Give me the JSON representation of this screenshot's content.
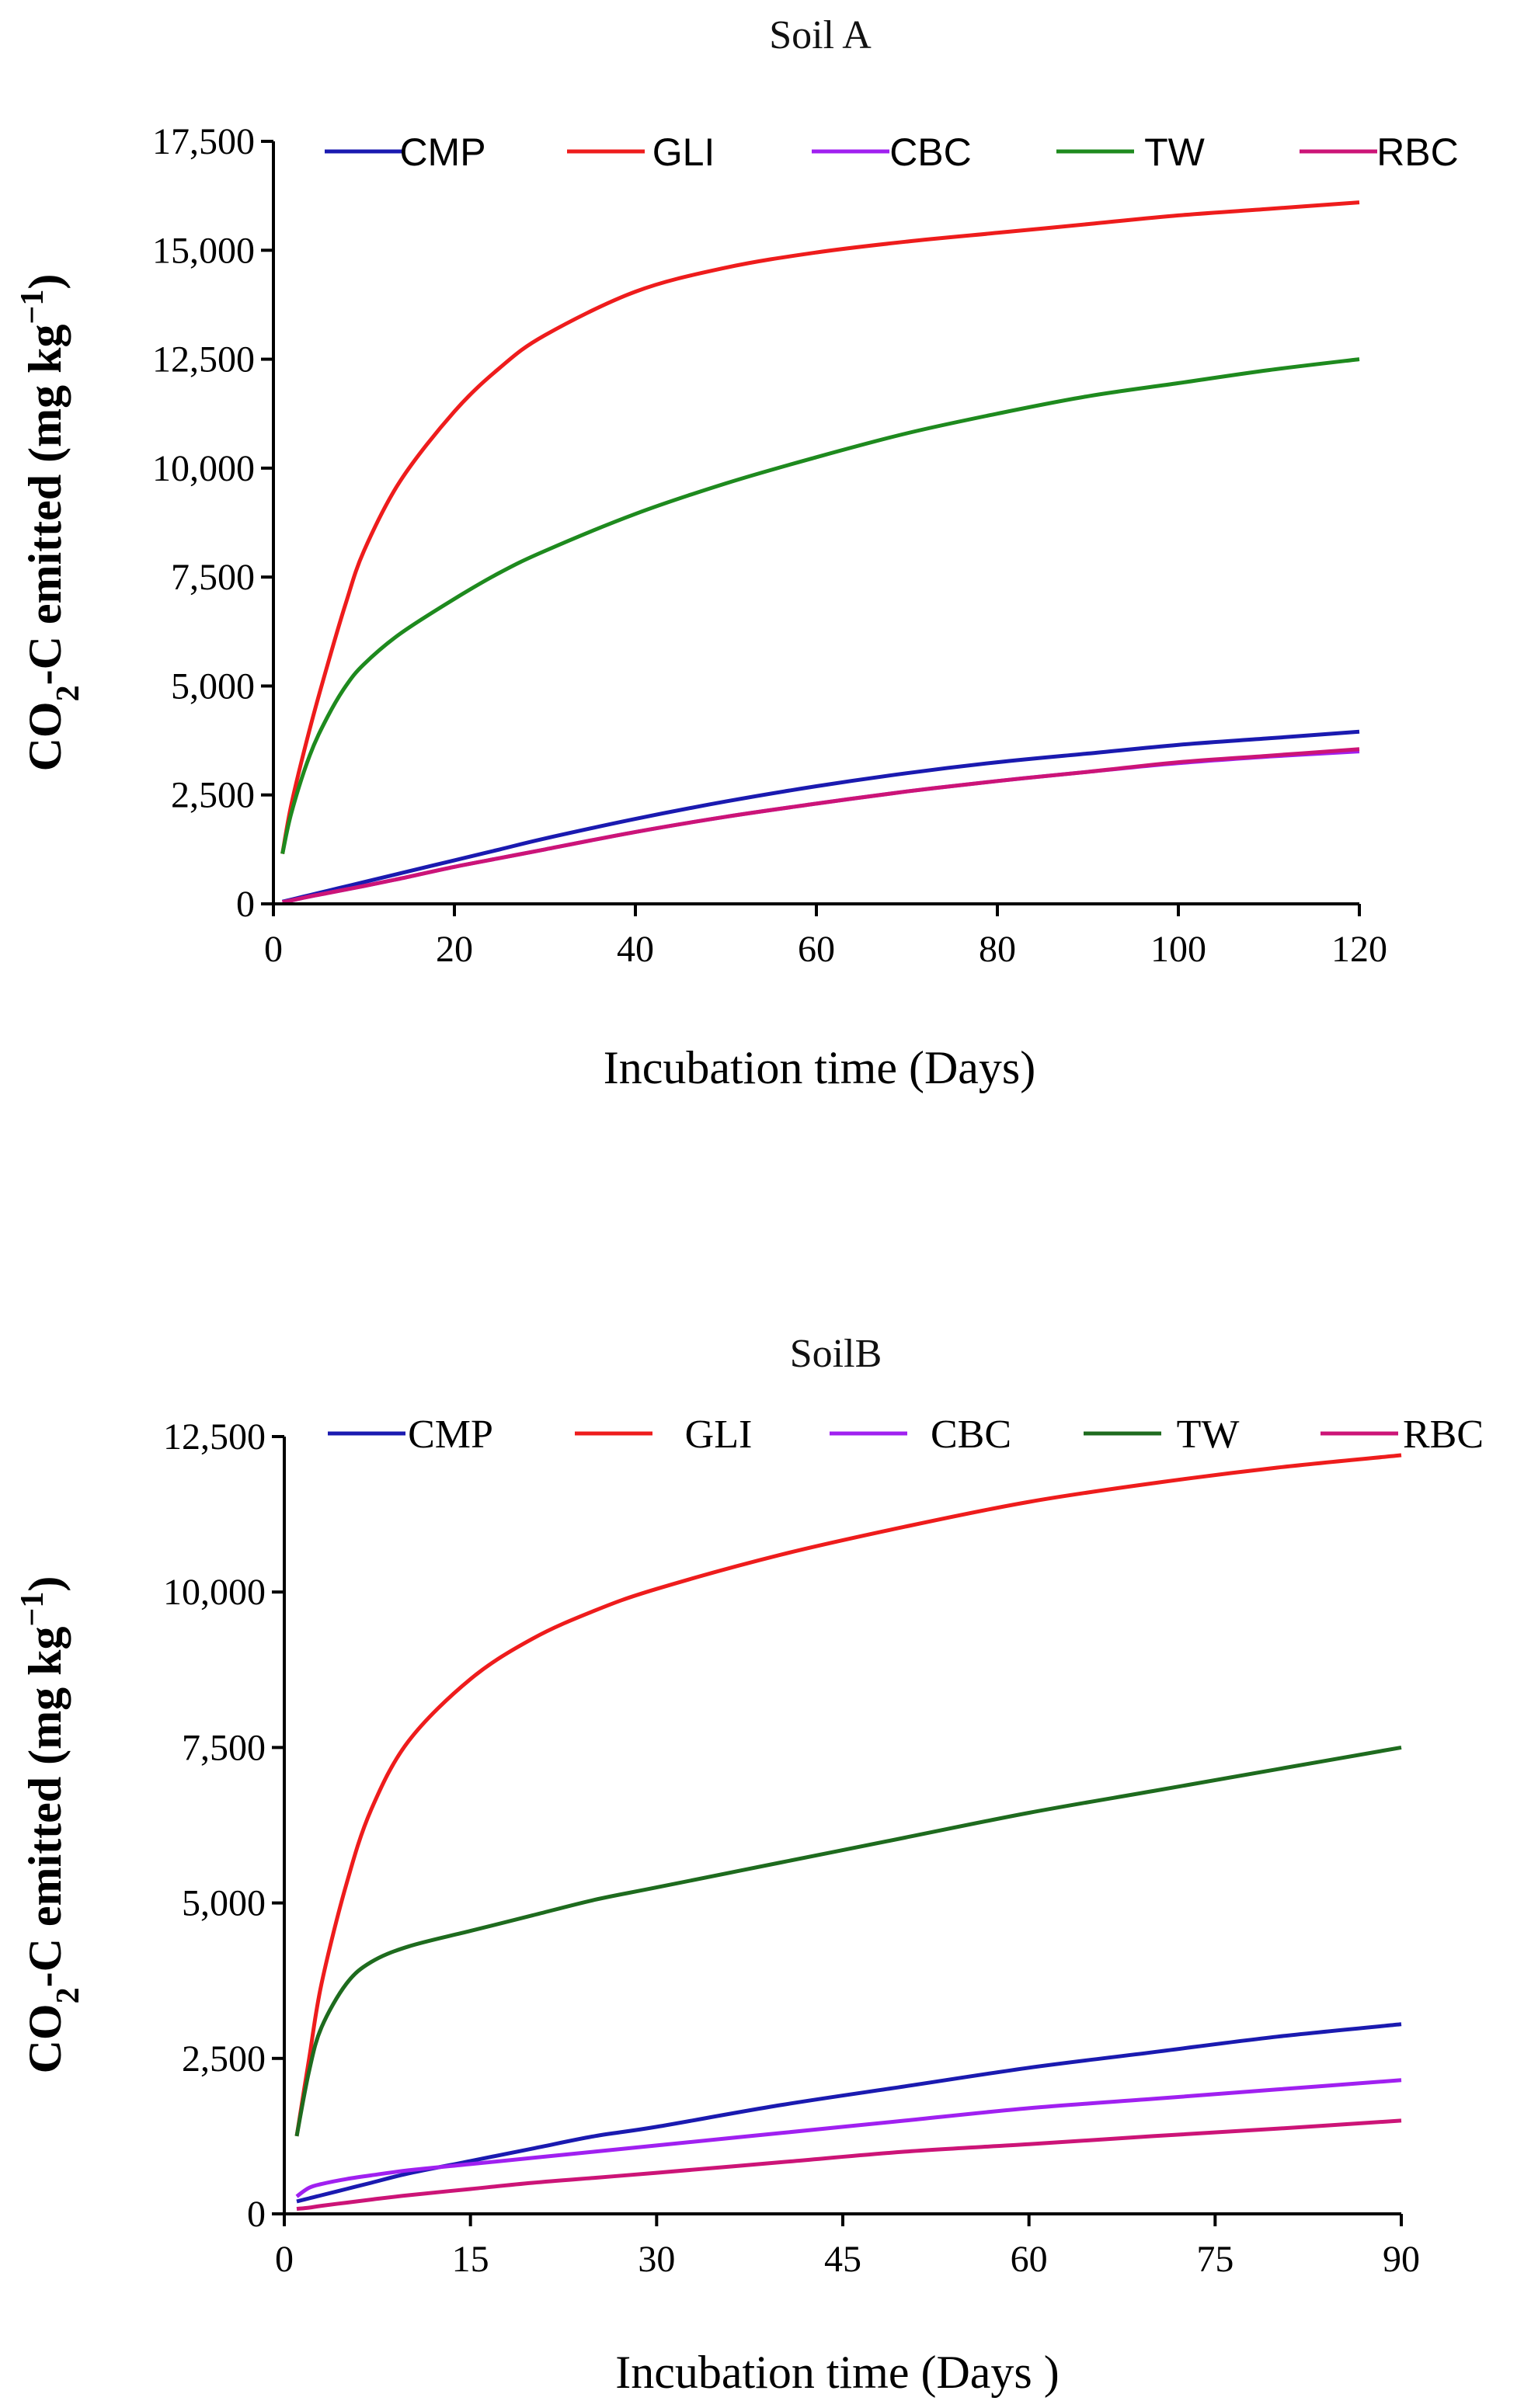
{
  "chart_data": [
    {
      "type": "line",
      "title": "Soil A",
      "xlabel": "Incubation time (Days)",
      "ylabel_main": "CO",
      "ylabel_sub": "2",
      "ylabel_rest": "-C emitted (mg kg",
      "ylabel_sup": "−1",
      "ylabel_end": ")",
      "xlim": [
        0,
        120
      ],
      "ylim": [
        0,
        17500
      ],
      "xticks": [
        0,
        20,
        40,
        60,
        80,
        100,
        120
      ],
      "yticks": [
        0,
        2500,
        5000,
        7500,
        10000,
        12500,
        15000,
        17500
      ],
      "xtick_labels": [
        "0",
        "20",
        "40",
        "60",
        "80",
        "100",
        "120"
      ],
      "ytick_labels": [
        "0",
        "2,500",
        "5,000",
        "7,500",
        "10,000",
        "12,500",
        "15,000",
        "17,500"
      ],
      "legend_position": "top",
      "x": [
        1,
        2,
        4,
        6,
        8,
        10,
        14,
        20,
        25,
        30,
        40,
        50,
        60,
        70,
        80,
        90,
        100,
        110,
        120
      ],
      "series": [
        {
          "name": "CMP",
          "color": "#1a1ab0",
          "values": [
            50,
            100,
            200,
            300,
            400,
            500,
            700,
            1000,
            1250,
            1500,
            1950,
            2350,
            2700,
            3000,
            3250,
            3450,
            3650,
            3800,
            3950
          ]
        },
        {
          "name": "GLI",
          "color": "#ee1c1c",
          "values": [
            1150,
            2300,
            4000,
            5500,
            6900,
            8100,
            9700,
            11300,
            12300,
            13050,
            14050,
            14600,
            14950,
            15200,
            15400,
            15600,
            15800,
            15950,
            16100
          ]
        },
        {
          "name": "CBC",
          "color": "#a020f0",
          "values": [
            40,
            80,
            170,
            250,
            330,
            410,
            580,
            850,
            1050,
            1250,
            1650,
            2000,
            2300,
            2580,
            2820,
            3030,
            3230,
            3380,
            3500
          ]
        },
        {
          "name": "TW",
          "color": "#1e8a1e",
          "values": [
            1150,
            2100,
            3400,
            4300,
            5000,
            5500,
            6200,
            7000,
            7600,
            8100,
            8950,
            9650,
            10250,
            10800,
            11250,
            11650,
            11950,
            12250,
            12500
          ]
        },
        {
          "name": "RBC",
          "color": "#cc1477",
          "values": [
            40,
            80,
            170,
            250,
            330,
            410,
            580,
            850,
            1050,
            1250,
            1650,
            2000,
            2300,
            2580,
            2820,
            3030,
            3250,
            3400,
            3550
          ]
        }
      ]
    },
    {
      "type": "line",
      "title": "SoilB",
      "xlabel": "Incubation time  (Days )",
      "ylabel_main": "CO",
      "ylabel_sub": "2",
      "ylabel_rest": "-C emitted (mg kg",
      "ylabel_sup": "−1",
      "ylabel_end": ")",
      "xlim": [
        0,
        90
      ],
      "ylim": [
        0,
        12500
      ],
      "xticks": [
        0,
        15,
        30,
        45,
        60,
        75,
        90
      ],
      "yticks": [
        0,
        2500,
        5000,
        7500,
        10000,
        12500
      ],
      "xtick_labels": [
        "0",
        "15",
        "30",
        "45",
        "60",
        "75",
        "90"
      ],
      "ytick_labels": [
        "0",
        "2,500",
        "5,000",
        "7,500",
        "10,000",
        "12,500"
      ],
      "legend_position": "top",
      "x": [
        1,
        2,
        3,
        5,
        7,
        10,
        15,
        20,
        25,
        30,
        40,
        50,
        60,
        70,
        80,
        90
      ],
      "series": [
        {
          "name": "CMP",
          "color": "#1a1ab0",
          "values": [
            200,
            250,
            300,
            400,
            500,
            650,
            850,
            1050,
            1250,
            1400,
            1750,
            2050,
            2350,
            2600,
            2850,
            3050
          ]
        },
        {
          "name": "GLI",
          "color": "#ee1c1c",
          "values": [
            1250,
            2500,
            3700,
            5300,
            6500,
            7600,
            8600,
            9250,
            9700,
            10050,
            10600,
            11050,
            11450,
            11750,
            12000,
            12200
          ]
        },
        {
          "name": "CBC",
          "color": "#a020f0",
          "values": [
            280,
            420,
            480,
            560,
            620,
            700,
            800,
            900,
            1000,
            1100,
            1300,
            1500,
            1700,
            1850,
            2000,
            2150
          ]
        },
        {
          "name": "TW",
          "color": "#1e6b1e",
          "values": [
            1250,
            2300,
            3000,
            3700,
            4050,
            4300,
            4550,
            4800,
            5050,
            5250,
            5650,
            6050,
            6450,
            6800,
            7150,
            7500
          ]
        },
        {
          "name": "RBC",
          "color": "#cc1477",
          "values": [
            80,
            100,
            130,
            180,
            230,
            300,
            400,
            500,
            580,
            660,
            830,
            1000,
            1120,
            1250,
            1370,
            1500
          ]
        }
      ]
    }
  ]
}
